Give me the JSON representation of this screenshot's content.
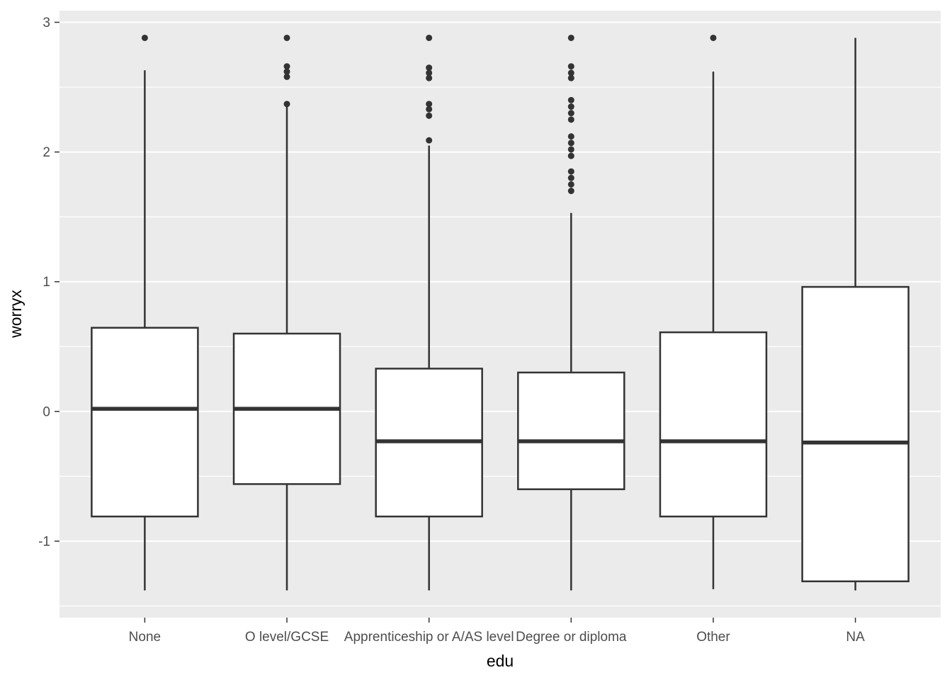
{
  "chart_data": {
    "type": "boxplot",
    "title": "",
    "xlabel": "edu",
    "ylabel": "worryx",
    "categories": [
      "None",
      "O level/GCSE",
      "Apprenticeship or A/AS level",
      "Degree or diploma",
      "Other",
      "NA"
    ],
    "y_ticks": [
      3,
      2,
      1,
      0,
      -1
    ],
    "y_minor_ticks": [
      2.5,
      1.5,
      0.5,
      -0.5,
      -1.5
    ],
    "ylim": [
      -1.59,
      3.09
    ],
    "grid": "major and minor horizontal, white on grey panel",
    "legend": false,
    "series": [
      {
        "category": "None",
        "whisker_low": -1.38,
        "q1": -0.81,
        "median": 0.02,
        "q3": 0.645,
        "whisker_high": 2.63,
        "outliers": [
          2.88
        ]
      },
      {
        "category": "O level/GCSE",
        "whisker_low": -1.38,
        "q1": -0.56,
        "median": 0.02,
        "q3": 0.6,
        "whisker_high": 2.35,
        "outliers": [
          2.88,
          2.66,
          2.62,
          2.58,
          2.37
        ]
      },
      {
        "category": "Apprenticeship or A/AS level",
        "whisker_low": -1.38,
        "q1": -0.81,
        "median": -0.23,
        "q3": 0.33,
        "whisker_high": 2.05,
        "outliers": [
          2.88,
          2.65,
          2.61,
          2.57,
          2.37,
          2.33,
          2.28,
          2.09
        ]
      },
      {
        "category": "Degree or diploma",
        "whisker_low": -1.38,
        "q1": -0.6,
        "median": -0.23,
        "q3": 0.3,
        "whisker_high": 1.53,
        "outliers": [
          2.88,
          2.66,
          2.61,
          2.57,
          2.4,
          2.35,
          2.3,
          2.25,
          2.12,
          2.07,
          2.02,
          1.97,
          1.85,
          1.8,
          1.75,
          1.7
        ]
      },
      {
        "category": "Other",
        "whisker_low": -1.37,
        "q1": -0.81,
        "median": -0.23,
        "q3": 0.61,
        "whisker_high": 2.62,
        "outliers": [
          2.88
        ]
      },
      {
        "category": "NA",
        "whisker_low": -1.38,
        "q1": -1.31,
        "median": -0.24,
        "q3": 0.96,
        "whisker_high": 2.88,
        "outliers": []
      }
    ],
    "colors": {
      "panel_background": "#EBEBEB",
      "grid": "#FFFFFF",
      "box_stroke": "#333333",
      "box_fill": "#FFFFFF",
      "outlier": "#333333",
      "tick_label": "#4D4D4D",
      "axis_title": "#000000"
    }
  }
}
